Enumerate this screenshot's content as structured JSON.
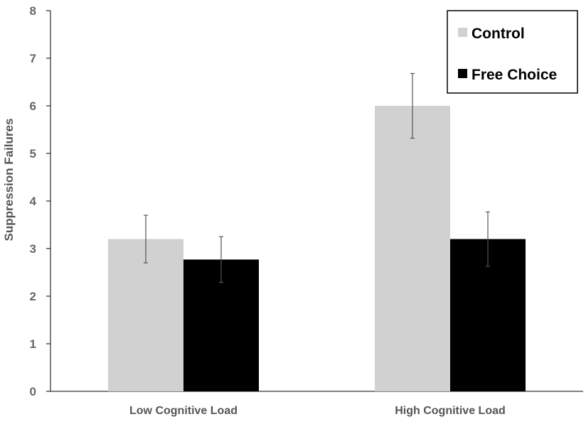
{
  "chart_data": {
    "type": "bar",
    "categories": [
      "Low Cognitive Load",
      "High Cognitive Load"
    ],
    "series": [
      {
        "name": "Control",
        "color": "#d1d1d1",
        "values": [
          3.2,
          6.0
        ],
        "error": [
          0.5,
          0.68
        ]
      },
      {
        "name": "Free Choice",
        "color": "#000000",
        "values": [
          2.77,
          3.2
        ],
        "error": [
          0.48,
          0.57
        ]
      }
    ],
    "xlabel": "",
    "ylabel": "Suppression Failures",
    "ylim": [
      0,
      8
    ],
    "yticks": [
      "0",
      "1",
      "2",
      "3",
      "4",
      "5",
      "6",
      "7",
      "8"
    ],
    "grid": false,
    "legend_position": "top-right"
  }
}
